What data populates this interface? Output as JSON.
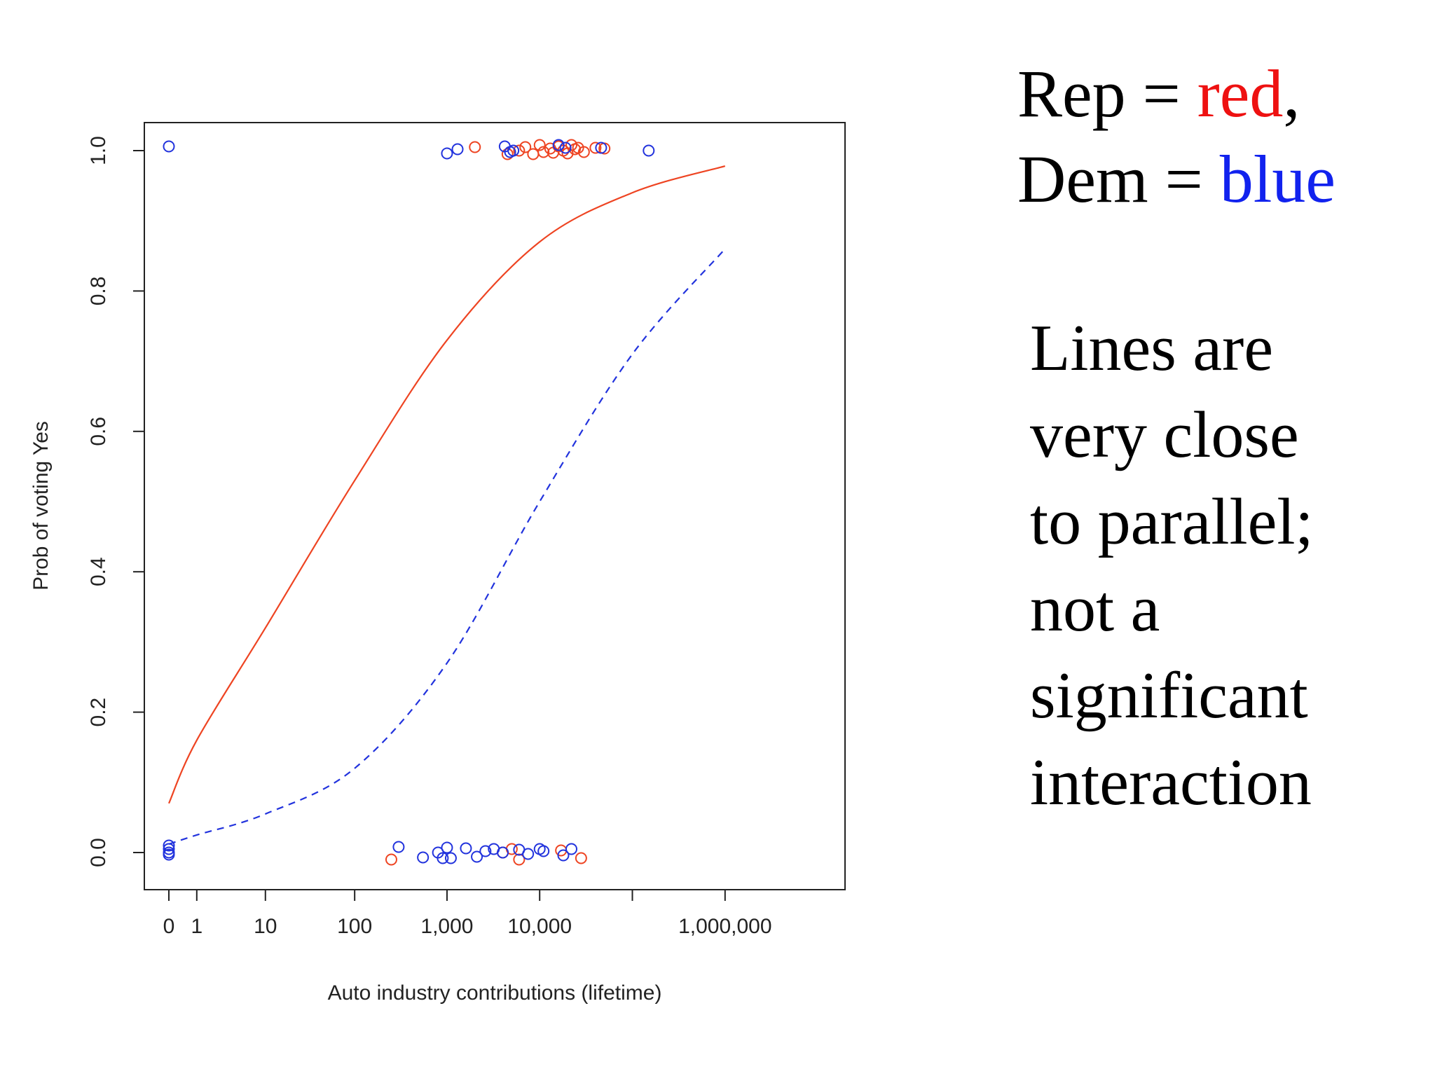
{
  "legend_note": {
    "rep_prefix": "Rep = ",
    "rep_word": "red",
    "rep_suffix": ",",
    "dem_prefix": "Dem = ",
    "dem_word": "blue",
    "rep_color": "#ee1111",
    "dem_color": "#1122ee"
  },
  "comment_lines": [
    "Lines are",
    "very close",
    "to parallel;",
    "not a",
    "significant",
    "interaction"
  ],
  "chart_data": {
    "type": "scatter",
    "title": "",
    "xlabel": "Auto industry contributions (lifetime)",
    "ylabel": "Prob of voting Yes",
    "x_scale": "log10(x+1)",
    "x_ticks": [
      0,
      1,
      10,
      100,
      1000,
      10000,
      100000,
      1000000
    ],
    "x_tick_labels": [
      "0",
      "1",
      "10",
      "100",
      "1,000",
      "10,000",
      "",
      "1,000,000"
    ],
    "y_ticks": [
      0.0,
      0.2,
      0.4,
      0.6,
      0.8,
      1.0
    ],
    "y_tick_labels": [
      "0.0",
      "0.2",
      "0.4",
      "0.6",
      "0.8",
      "1.0"
    ],
    "ylim": [
      -0.04,
      1.04
    ],
    "grid": false,
    "series": [
      {
        "name": "Rep",
        "color": "#ee4422",
        "style": "solid",
        "curve": [
          {
            "x": 0,
            "y": 0.07
          },
          {
            "x": 1,
            "y": 0.16
          },
          {
            "x": 10,
            "y": 0.32
          },
          {
            "x": 100,
            "y": 0.53
          },
          {
            "x": 1000,
            "y": 0.73
          },
          {
            "x": 10000,
            "y": 0.87
          },
          {
            "x": 100000,
            "y": 0.94
          },
          {
            "x": 1000000,
            "y": 0.978
          }
        ],
        "points": [
          {
            "x": 250,
            "y": -0.01
          },
          {
            "x": 5000,
            "y": 0.005
          },
          {
            "x": 6000,
            "y": -0.01
          },
          {
            "x": 4000,
            "y": 0.0
          },
          {
            "x": 17000,
            "y": 0.003
          },
          {
            "x": 28000,
            "y": -0.008
          },
          {
            "x": 2000,
            "y": 1.005
          },
          {
            "x": 4500,
            "y": 0.995
          },
          {
            "x": 6000,
            "y": 1.0
          },
          {
            "x": 7000,
            "y": 1.005
          },
          {
            "x": 8500,
            "y": 0.995
          },
          {
            "x": 10000,
            "y": 1.008
          },
          {
            "x": 11000,
            "y": 0.998
          },
          {
            "x": 13000,
            "y": 1.003
          },
          {
            "x": 14000,
            "y": 0.997
          },
          {
            "x": 16000,
            "y": 1.006
          },
          {
            "x": 18000,
            "y": 1.0
          },
          {
            "x": 20000,
            "y": 0.996
          },
          {
            "x": 22000,
            "y": 1.008
          },
          {
            "x": 24000,
            "y": 1.002
          },
          {
            "x": 26000,
            "y": 1.004
          },
          {
            "x": 30000,
            "y": 0.998
          },
          {
            "x": 40000,
            "y": 1.004
          },
          {
            "x": 50000,
            "y": 1.003
          }
        ]
      },
      {
        "name": "Dem",
        "color": "#2233dd",
        "style": "dashed",
        "curve": [
          {
            "x": 0,
            "y": 0.012
          },
          {
            "x": 1,
            "y": 0.025
          },
          {
            "x": 10,
            "y": 0.055
          },
          {
            "x": 100,
            "y": 0.12
          },
          {
            "x": 1000,
            "y": 0.27
          },
          {
            "x": 10000,
            "y": 0.5
          },
          {
            "x": 100000,
            "y": 0.71
          },
          {
            "x": 1000000,
            "y": 0.86
          }
        ],
        "points": [
          {
            "x": 0,
            "y": 1.006
          },
          {
            "x": 0,
            "y": 0.0
          },
          {
            "x": 0,
            "y": 0.005
          },
          {
            "x": 0,
            "y": 0.01
          },
          {
            "x": 0,
            "y": -0.003
          },
          {
            "x": 300,
            "y": 0.008
          },
          {
            "x": 550,
            "y": -0.007
          },
          {
            "x": 800,
            "y": 0.0
          },
          {
            "x": 900,
            "y": -0.008
          },
          {
            "x": 1000,
            "y": 0.007
          },
          {
            "x": 1100,
            "y": -0.008
          },
          {
            "x": 1600,
            "y": 0.006
          },
          {
            "x": 2100,
            "y": -0.006
          },
          {
            "x": 2600,
            "y": 0.002
          },
          {
            "x": 3200,
            "y": 0.005
          },
          {
            "x": 4000,
            "y": 0.0
          },
          {
            "x": 6000,
            "y": 0.004
          },
          {
            "x": 7500,
            "y": -0.002
          },
          {
            "x": 10000,
            "y": 0.005
          },
          {
            "x": 11000,
            "y": 0.002
          },
          {
            "x": 18000,
            "y": -0.004
          },
          {
            "x": 22000,
            "y": 0.005
          },
          {
            "x": 1000,
            "y": 0.996
          },
          {
            "x": 1300,
            "y": 1.002
          },
          {
            "x": 4200,
            "y": 1.006
          },
          {
            "x": 4800,
            "y": 0.998
          },
          {
            "x": 5200,
            "y": 1.0
          },
          {
            "x": 16000,
            "y": 1.008
          },
          {
            "x": 19000,
            "y": 1.004
          },
          {
            "x": 46000,
            "y": 1.004
          },
          {
            "x": 150000,
            "y": 1.0
          }
        ]
      }
    ]
  }
}
